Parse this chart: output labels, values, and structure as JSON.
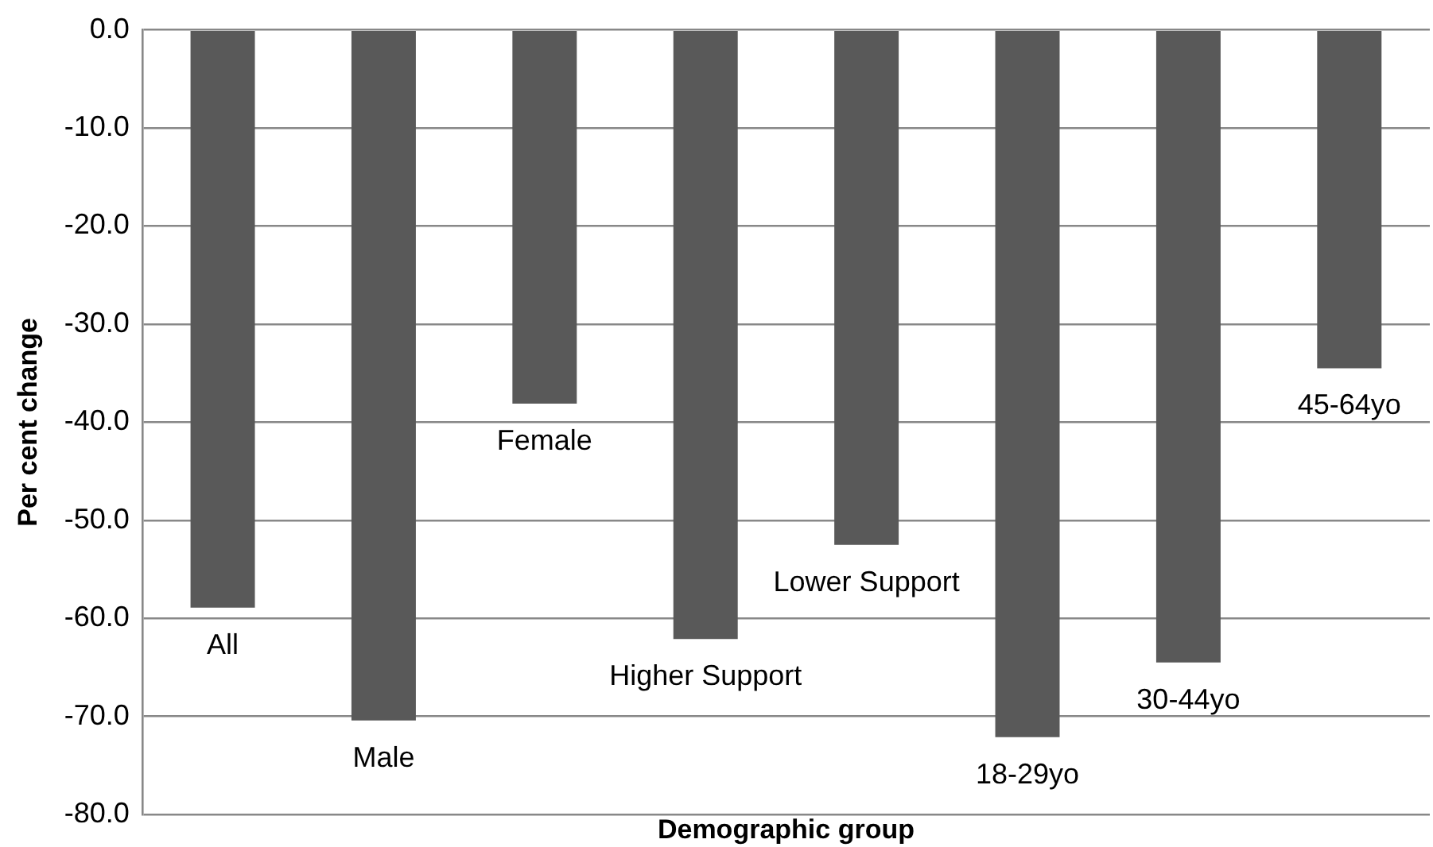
{
  "chart_data": {
    "type": "bar",
    "xlabel": "Demographic group",
    "ylabel": "Per cent change",
    "categories": [
      "All",
      "Male",
      "Female",
      "Higher Support",
      "Lower Support",
      "18-29yo",
      "30-44yo",
      "45-64yo"
    ],
    "values": [
      -58.9,
      -70.4,
      -38.1,
      -62.1,
      -52.5,
      -72.1,
      -64.5,
      -34.5
    ],
    "color": "#595959",
    "ylim": [
      -80,
      0
    ],
    "yticks": [
      {
        "value": 0,
        "label": "0.0"
      },
      {
        "value": -10,
        "label": "-10.0"
      },
      {
        "value": -20,
        "label": "-20.0"
      },
      {
        "value": -30,
        "label": "-30.0"
      },
      {
        "value": -40,
        "label": "-40.0"
      },
      {
        "value": -50,
        "label": "-50.0"
      },
      {
        "value": -60,
        "label": "-60.0"
      },
      {
        "value": -70,
        "label": "-70.0"
      },
      {
        "value": -80,
        "label": "-80.0"
      }
    ],
    "grid": "y",
    "legend": false
  }
}
